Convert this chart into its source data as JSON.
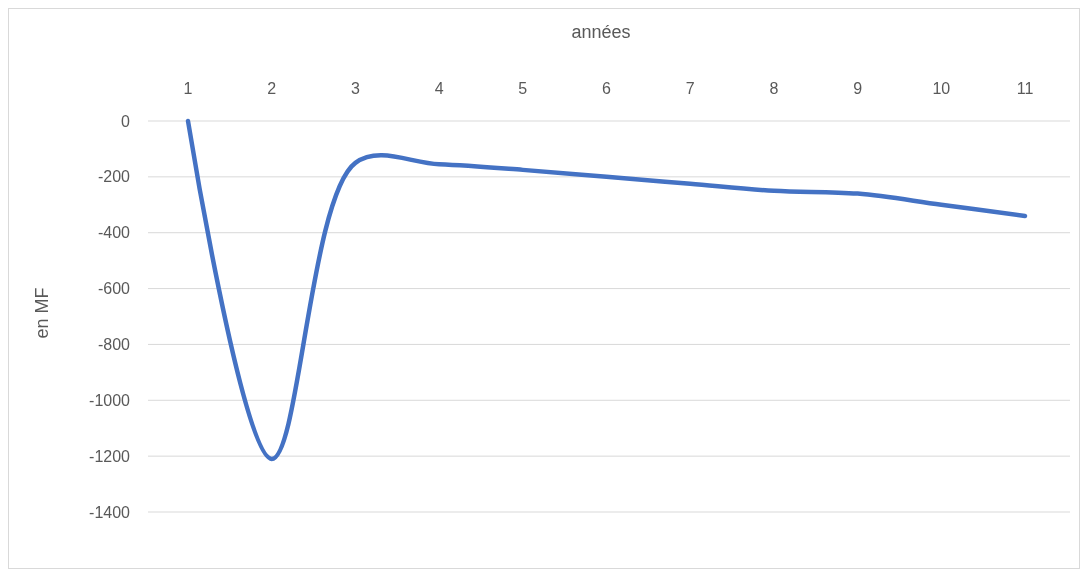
{
  "chart_data": {
    "type": "line",
    "xlabel": "années",
    "ylabel": "en MF",
    "categories": [
      "1",
      "2",
      "3",
      "4",
      "5",
      "6",
      "7",
      "8",
      "9",
      "10",
      "11"
    ],
    "series": [
      {
        "color": "#4472c4",
        "values": [
          0,
          -1210,
          -150,
          -155,
          -175,
          -200,
          -225,
          -250,
          -260,
          -300,
          -340
        ]
      }
    ],
    "ylim": [
      -1400,
      0
    ],
    "yticks": [
      0,
      -200,
      -400,
      -600,
      -800,
      -1000,
      -1200,
      -1400
    ],
    "grid": "y",
    "marker": "none",
    "line_style": "solid"
  }
}
